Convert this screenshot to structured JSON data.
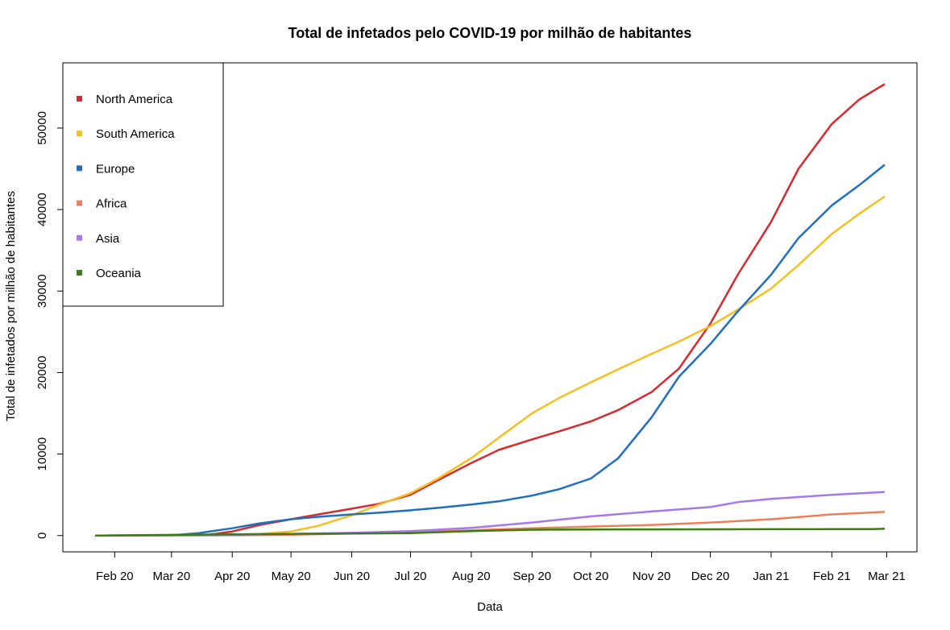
{
  "chart_data": {
    "type": "line",
    "title": "Total de infetados pelo COVID-19 por milhão de habitantes",
    "xlabel": "Data",
    "ylabel": "Total de infetados por milhão de habitantes",
    "x_ticks": [
      "Feb 20",
      "Mar 20",
      "Apr 20",
      "May 20",
      "Jun 20",
      "Jul 20",
      "Aug 20",
      "Sep 20",
      "Oct 20",
      "Nov 20",
      "Dec 20",
      "Jan 21",
      "Feb 21",
      "Mar 21"
    ],
    "y_ticks": [
      "0",
      "10000",
      "20000",
      "30000",
      "40000",
      "50000"
    ],
    "ylim": [
      -2000,
      58000
    ],
    "x_start": "2020-01-22",
    "x_end": "2021-02-28",
    "legend_position": "top-left",
    "grid": false,
    "series": [
      {
        "name": "North America",
        "color": "#d62a2f",
        "points": [
          [
            "2020-01-22",
            0
          ],
          [
            "2020-03-10",
            30
          ],
          [
            "2020-03-20",
            100
          ],
          [
            "2020-04-01",
            500
          ],
          [
            "2020-04-15",
            1300
          ],
          [
            "2020-05-01",
            2000
          ],
          [
            "2020-05-15",
            2600
          ],
          [
            "2020-06-01",
            3300
          ],
          [
            "2020-06-15",
            3900
          ],
          [
            "2020-07-01",
            5000
          ],
          [
            "2020-07-15",
            6800
          ],
          [
            "2020-08-01",
            8900
          ],
          [
            "2020-08-15",
            10500
          ],
          [
            "2020-09-01",
            11800
          ],
          [
            "2020-09-15",
            12800
          ],
          [
            "2020-10-01",
            14000
          ],
          [
            "2020-10-15",
            15400
          ],
          [
            "2020-11-01",
            17600
          ],
          [
            "2020-11-15",
            20500
          ],
          [
            "2020-12-01",
            26000
          ],
          [
            "2020-12-15",
            32000
          ],
          [
            "2021-01-01",
            38500
          ],
          [
            "2021-01-15",
            45000
          ],
          [
            "2021-02-01",
            50500
          ],
          [
            "2021-02-15",
            53500
          ],
          [
            "2021-02-28",
            55400
          ]
        ]
      },
      {
        "name": "South America",
        "color": "#f4c021",
        "points": [
          [
            "2020-01-22",
            0
          ],
          [
            "2020-03-20",
            0
          ],
          [
            "2020-04-15",
            200
          ],
          [
            "2020-05-01",
            500
          ],
          [
            "2020-05-15",
            1200
          ],
          [
            "2020-06-01",
            2500
          ],
          [
            "2020-06-15",
            3800
          ],
          [
            "2020-07-01",
            5200
          ],
          [
            "2020-07-15",
            7000
          ],
          [
            "2020-08-01",
            9500
          ],
          [
            "2020-08-15",
            12000
          ],
          [
            "2020-09-01",
            15000
          ],
          [
            "2020-09-15",
            16900
          ],
          [
            "2020-10-01",
            18800
          ],
          [
            "2020-10-15",
            20400
          ],
          [
            "2020-11-01",
            22300
          ],
          [
            "2020-11-15",
            23800
          ],
          [
            "2020-12-01",
            25700
          ],
          [
            "2020-12-15",
            27700
          ],
          [
            "2021-01-01",
            30300
          ],
          [
            "2021-01-15",
            33200
          ],
          [
            "2021-02-01",
            37000
          ],
          [
            "2021-02-15",
            39500
          ],
          [
            "2021-02-28",
            41600
          ]
        ]
      },
      {
        "name": "Europe",
        "color": "#1f6fbf",
        "points": [
          [
            "2020-01-22",
            0
          ],
          [
            "2020-03-01",
            30
          ],
          [
            "2020-03-15",
            300
          ],
          [
            "2020-04-01",
            900
          ],
          [
            "2020-04-15",
            1500
          ],
          [
            "2020-05-01",
            2000
          ],
          [
            "2020-05-15",
            2300
          ],
          [
            "2020-06-01",
            2600
          ],
          [
            "2020-06-15",
            2800
          ],
          [
            "2020-07-01",
            3100
          ],
          [
            "2020-07-15",
            3400
          ],
          [
            "2020-08-01",
            3800
          ],
          [
            "2020-08-15",
            4200
          ],
          [
            "2020-09-01",
            4900
          ],
          [
            "2020-09-15",
            5700
          ],
          [
            "2020-10-01",
            7000
          ],
          [
            "2020-10-15",
            9500
          ],
          [
            "2020-11-01",
            14500
          ],
          [
            "2020-11-15",
            19500
          ],
          [
            "2020-12-01",
            23500
          ],
          [
            "2020-12-15",
            27500
          ],
          [
            "2021-01-01",
            32000
          ],
          [
            "2021-01-15",
            36500
          ],
          [
            "2021-02-01",
            40500
          ],
          [
            "2021-02-15",
            43000
          ],
          [
            "2021-02-28",
            45500
          ]
        ]
      },
      {
        "name": "Africa",
        "color": "#ef7f57",
        "points": [
          [
            "2020-01-22",
            0
          ],
          [
            "2020-04-01",
            30
          ],
          [
            "2020-05-01",
            100
          ],
          [
            "2020-06-01",
            250
          ],
          [
            "2020-07-01",
            400
          ],
          [
            "2020-08-01",
            650
          ],
          [
            "2020-09-01",
            900
          ],
          [
            "2020-10-01",
            1100
          ],
          [
            "2020-11-01",
            1300
          ],
          [
            "2020-12-01",
            1600
          ],
          [
            "2021-01-01",
            2000
          ],
          [
            "2021-02-01",
            2600
          ],
          [
            "2021-02-28",
            2900
          ]
        ]
      },
      {
        "name": "Asia",
        "color": "#a678ea",
        "points": [
          [
            "2020-01-22",
            0
          ],
          [
            "2020-03-01",
            50
          ],
          [
            "2020-04-01",
            100
          ],
          [
            "2020-05-01",
            200
          ],
          [
            "2020-06-01",
            330
          ],
          [
            "2020-07-01",
            550
          ],
          [
            "2020-08-01",
            950
          ],
          [
            "2020-09-01",
            1600
          ],
          [
            "2020-10-01",
            2350
          ],
          [
            "2020-11-01",
            2950
          ],
          [
            "2020-12-01",
            3500
          ],
          [
            "2020-12-15",
            4100
          ],
          [
            "2021-01-01",
            4500
          ],
          [
            "2021-02-01",
            5000
          ],
          [
            "2021-02-28",
            5350
          ]
        ]
      },
      {
        "name": "Oceania",
        "color": "#3c7e14",
        "points": [
          [
            "2020-01-22",
            0
          ],
          [
            "2020-04-01",
            150
          ],
          [
            "2020-05-01",
            200
          ],
          [
            "2020-06-01",
            250
          ],
          [
            "2020-07-01",
            300
          ],
          [
            "2020-08-01",
            550
          ],
          [
            "2020-09-01",
            720
          ],
          [
            "2020-10-01",
            750
          ],
          [
            "2020-11-01",
            760
          ],
          [
            "2020-12-01",
            770
          ],
          [
            "2021-01-01",
            780
          ],
          [
            "2021-02-01",
            790
          ],
          [
            "2021-02-22",
            800
          ],
          [
            "2021-02-28",
            850
          ]
        ]
      }
    ]
  }
}
